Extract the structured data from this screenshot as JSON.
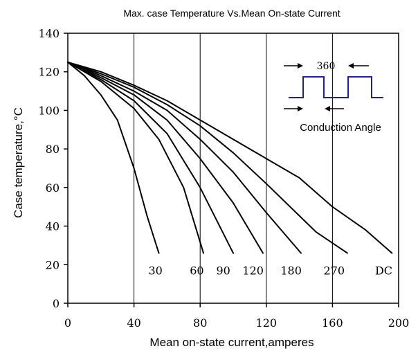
{
  "chart_data": {
    "type": "line",
    "title": "Max. case Temperature Vs.Mean On-state Current",
    "xlabel": "Mean on-state current,amperes",
    "ylabel": "Case temperature,°C",
    "xlim": [
      0,
      200
    ],
    "ylim": [
      0,
      140
    ],
    "x_ticks": [
      0,
      40,
      80,
      120,
      160,
      200
    ],
    "y_ticks": [
      0,
      20,
      40,
      60,
      80,
      100,
      120,
      140
    ],
    "grid": "vertical",
    "series": [
      {
        "name": "30",
        "points": [
          [
            0,
            125
          ],
          [
            10,
            118
          ],
          [
            20,
            108
          ],
          [
            30,
            95
          ],
          [
            40,
            70
          ],
          [
            48,
            45
          ],
          [
            55,
            26
          ]
        ]
      },
      {
        "name": "60",
        "points": [
          [
            0,
            125
          ],
          [
            20,
            115
          ],
          [
            40,
            101
          ],
          [
            55,
            85
          ],
          [
            70,
            60
          ],
          [
            82,
            26
          ]
        ]
      },
      {
        "name": "90",
        "points": [
          [
            0,
            125
          ],
          [
            20,
            116
          ],
          [
            40,
            105
          ],
          [
            60,
            88
          ],
          [
            80,
            60
          ],
          [
            100,
            26
          ]
        ]
      },
      {
        "name": "120",
        "points": [
          [
            0,
            125
          ],
          [
            20,
            117
          ],
          [
            40,
            108
          ],
          [
            60,
            95
          ],
          [
            80,
            75
          ],
          [
            100,
            52
          ],
          [
            118,
            26
          ]
        ]
      },
      {
        "name": "180",
        "points": [
          [
            0,
            125
          ],
          [
            20,
            118
          ],
          [
            40,
            110
          ],
          [
            60,
            100
          ],
          [
            80,
            85
          ],
          [
            100,
            68
          ],
          [
            120,
            47
          ],
          [
            141,
            26
          ]
        ]
      },
      {
        "name": "270",
        "points": [
          [
            0,
            125
          ],
          [
            20,
            119
          ],
          [
            40,
            112
          ],
          [
            60,
            103
          ],
          [
            80,
            92
          ],
          [
            100,
            78
          ],
          [
            120,
            62
          ],
          [
            150,
            37
          ],
          [
            169,
            26
          ]
        ]
      },
      {
        "name": "DC",
        "points": [
          [
            0,
            125
          ],
          [
            20,
            120
          ],
          [
            40,
            113
          ],
          [
            60,
            105
          ],
          [
            80,
            95
          ],
          [
            100,
            85
          ],
          [
            120,
            75
          ],
          [
            140,
            65
          ],
          [
            160,
            50
          ],
          [
            180,
            38
          ],
          [
            196,
            26
          ]
        ]
      }
    ],
    "series_labels": [
      {
        "text": "30",
        "x": 53,
        "y": 17
      },
      {
        "text": "60",
        "x": 78,
        "y": 17
      },
      {
        "text": "90",
        "x": 94,
        "y": 17
      },
      {
        "text": "120",
        "x": 112,
        "y": 17
      },
      {
        "text": "180",
        "x": 135,
        "y": 17
      },
      {
        "text": "270",
        "x": 161,
        "y": 17
      },
      {
        "text": "DC",
        "x": 191,
        "y": 17
      }
    ],
    "inset": {
      "angle_label": "360",
      "caption": "Conduction Angle",
      "waveform_color": "#1f1f9e"
    }
  }
}
